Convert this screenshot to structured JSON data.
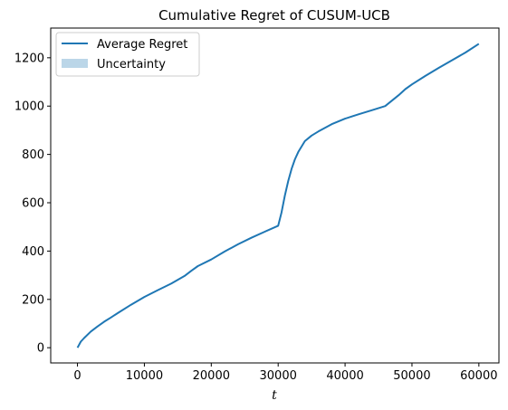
{
  "chart_data": {
    "type": "line",
    "title": "Cumulative Regret of CUSUM-UCB",
    "xlabel": "t",
    "ylabel": "",
    "xlim": [
      -4000,
      63000
    ],
    "ylim": [
      -63,
      1323
    ],
    "xticks": [
      0,
      10000,
      20000,
      30000,
      40000,
      50000,
      60000
    ],
    "xtick_labels": [
      "0",
      "10000",
      "20000",
      "30000",
      "40000",
      "50000",
      "60000"
    ],
    "yticks": [
      0,
      200,
      400,
      600,
      800,
      1000,
      1200
    ],
    "ytick_labels": [
      "0",
      "200",
      "400",
      "600",
      "800",
      "1000",
      "1200"
    ],
    "grid": false,
    "legend_position": "upper-left",
    "series": [
      {
        "name": "Average Regret",
        "color": "#1f77b4",
        "x": [
          0,
          500,
          1000,
          2000,
          3000,
          4000,
          5000,
          6000,
          8000,
          10000,
          12000,
          14000,
          16000,
          17000,
          18000,
          20000,
          22000,
          24000,
          26000,
          28000,
          30000,
          30500,
          31000,
          31500,
          32000,
          32500,
          33000,
          34000,
          35000,
          36000,
          38000,
          40000,
          42000,
          44000,
          46000,
          48000,
          49000,
          50000,
          52000,
          54000,
          56000,
          58000,
          60000
        ],
        "y": [
          0,
          25,
          40,
          67,
          88,
          108,
          125,
          143,
          178,
          210,
          238,
          265,
          297,
          318,
          338,
          365,
          398,
          428,
          455,
          480,
          505,
          560,
          630,
          690,
          740,
          780,
          810,
          855,
          878,
          895,
          925,
          948,
          966,
          983,
          1000,
          1045,
          1070,
          1090,
          1125,
          1158,
          1190,
          1222,
          1258
        ]
      },
      {
        "name": "Uncertainty",
        "color": "#1f77b4",
        "opacity": 0.3,
        "type": "band"
      }
    ]
  }
}
